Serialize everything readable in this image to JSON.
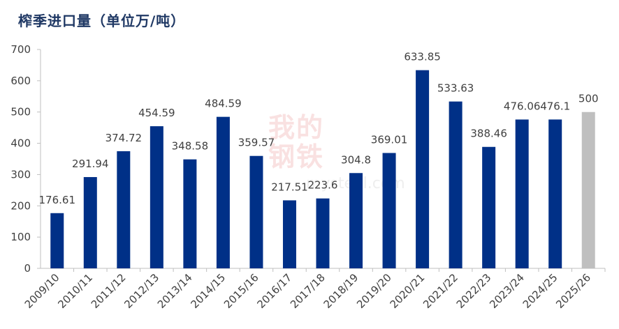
{
  "title": "榨季进口量（单位万/吨）",
  "watermark": {
    "chars": [
      "我",
      "的",
      "钢",
      "铁"
    ],
    "url": "mysteel.com"
  },
  "chart_data": {
    "type": "bar",
    "title": "榨季进口量（单位万/吨）",
    "xlabel": "",
    "ylabel": "",
    "ylim": [
      0,
      700
    ],
    "yticks": [
      0,
      100,
      200,
      300,
      400,
      500,
      600,
      700
    ],
    "grid": false,
    "legend": "none",
    "categories": [
      "2009/10",
      "2010/11",
      "2011/12",
      "2012/13",
      "2013/14",
      "2014/15",
      "2015/16",
      "2016/17",
      "2017/18",
      "2018/19",
      "2019/20",
      "2020/21",
      "2021/22",
      "2022/23",
      "2023/24",
      "2024/25",
      "2025/26"
    ],
    "values": [
      176.61,
      291.94,
      374.72,
      454.59,
      348.58,
      484.59,
      359.57,
      217.51,
      223.6,
      304.8,
      369.01,
      633.85,
      533.63,
      388.46,
      476.06,
      476.1,
      500
    ],
    "value_labels": [
      "176.61",
      "291.94",
      "374.72",
      "454.59",
      "348.58",
      "484.59",
      "359.57",
      "217.51",
      "223.6",
      "304.8",
      "369.01",
      "633.85",
      "533.63",
      "388.46",
      "476.06",
      "476.1",
      "500"
    ],
    "colors": {
      "bar": "#003087",
      "forecast_bar": "#bfbfbf",
      "axis": "#bfbfbf",
      "text": "#404040",
      "title": "#1f3864"
    },
    "forecast_categories": [
      "2025/26"
    ]
  }
}
